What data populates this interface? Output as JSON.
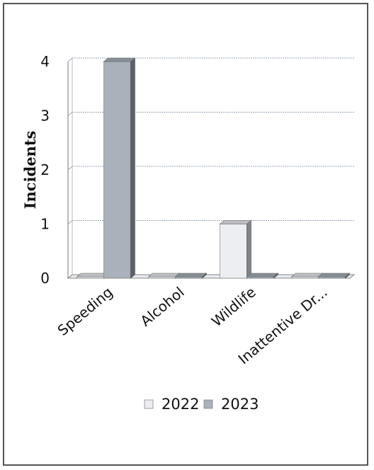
{
  "chart_data": {
    "type": "bar",
    "categories": [
      "Speeding",
      "Alcohol",
      "Wildlife",
      "Inattentive Dr..."
    ],
    "series": [
      {
        "name": "2022",
        "values": [
          0,
          0,
          1,
          0
        ],
        "color": "#eceef2"
      },
      {
        "name": "2023",
        "values": [
          4,
          0,
          0,
          0
        ],
        "color": "#a9b1bb"
      }
    ],
    "xlabel": "",
    "ylabel": "Incidents",
    "ylim": [
      0,
      4
    ],
    "yticks": [
      "0",
      "1",
      "2",
      "3",
      "4"
    ],
    "grid": true,
    "legend_position": "bottom",
    "style": "3d-bar"
  }
}
